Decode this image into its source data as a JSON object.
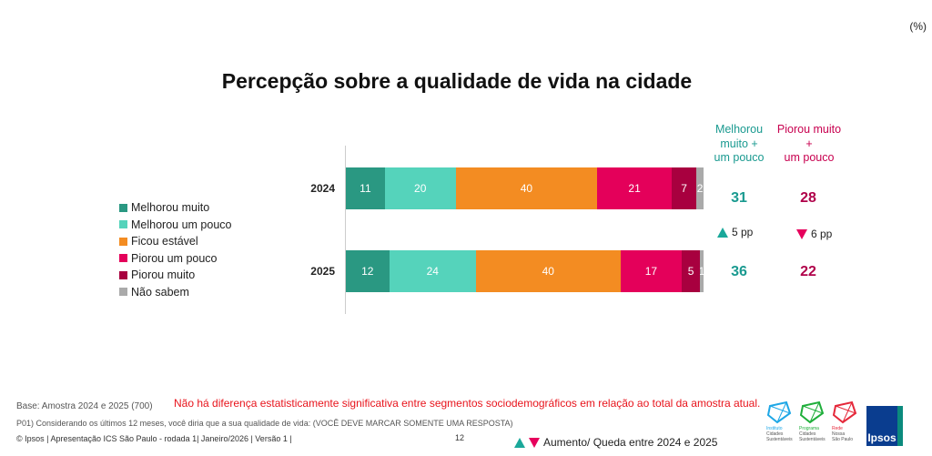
{
  "corner_unit": "(%)",
  "chart_data": {
    "type": "bar",
    "orientation": "horizontal",
    "stacked": true,
    "title": "Percepção sobre a qualidade de vida na cidade",
    "categories": [
      "2024",
      "2025"
    ],
    "series": [
      {
        "name": "Melhorou muito",
        "color": "#2a9882",
        "values": [
          11,
          12
        ]
      },
      {
        "name": "Melhorou um pouco",
        "color": "#55d3bb",
        "values": [
          20,
          24
        ]
      },
      {
        "name": "Ficou estável",
        "color": "#f38c22",
        "values": [
          40,
          40
        ]
      },
      {
        "name": "Piorou um pouco",
        "color": "#e4005a",
        "values": [
          21,
          17
        ]
      },
      {
        "name": "Piorou muito",
        "color": "#a8003f",
        "values": [
          7,
          5
        ]
      },
      {
        "name": "Não sabem",
        "color": "#aaaaaa",
        "values": [
          2,
          1
        ]
      }
    ],
    "legend_position": "left"
  },
  "summary": {
    "pos_header": [
      "Melhorou",
      "muito +",
      "um pouco"
    ],
    "neg_header": [
      "Piorou muito",
      "+",
      "um pouco"
    ],
    "pos_values": [
      "31",
      "36"
    ],
    "neg_values": [
      "28",
      "22"
    ],
    "pos_change": "5 pp",
    "neg_change": "6 pp",
    "pos_color": "#1a9a90",
    "neg_color": "#b0004a"
  },
  "footer": {
    "base": "Base: Amostra 2024 e 2025 (700)",
    "note": "Não há diferença estatisticamente significativa entre segmentos sociodemográficos em relação ao total da amostra atual.",
    "question": "P01) Considerando os últimos 12 meses, você diria que a sua qualidade de vida: (VOCÊ DEVE MARCAR SOMENTE UMA RESPOSTA)",
    "copyright": "© Ipsos |  Apresentação ICS São Paulo - rodada 1| Janeiro/2026 | Versão 1 |",
    "page": "12",
    "change_legend": "Aumento/ Queda entre 2024 e 2025",
    "logos": [
      {
        "name": "Instituto Cidades Sustentáveis",
        "lines": [
          "Instituto",
          "Cidades",
          "Sustentáveis"
        ],
        "color": "#1ea7e6"
      },
      {
        "name": "Programa Cidades Sustentáveis",
        "lines": [
          "Programa",
          "Cidades",
          "Sustentáveis"
        ],
        "color": "#1fae3a"
      },
      {
        "name": "Rede Nossa São Paulo",
        "lines": [
          "Rede",
          "Nossa",
          "São Paulo"
        ],
        "color": "#e5283a"
      }
    ],
    "brand": "Ipsos"
  }
}
